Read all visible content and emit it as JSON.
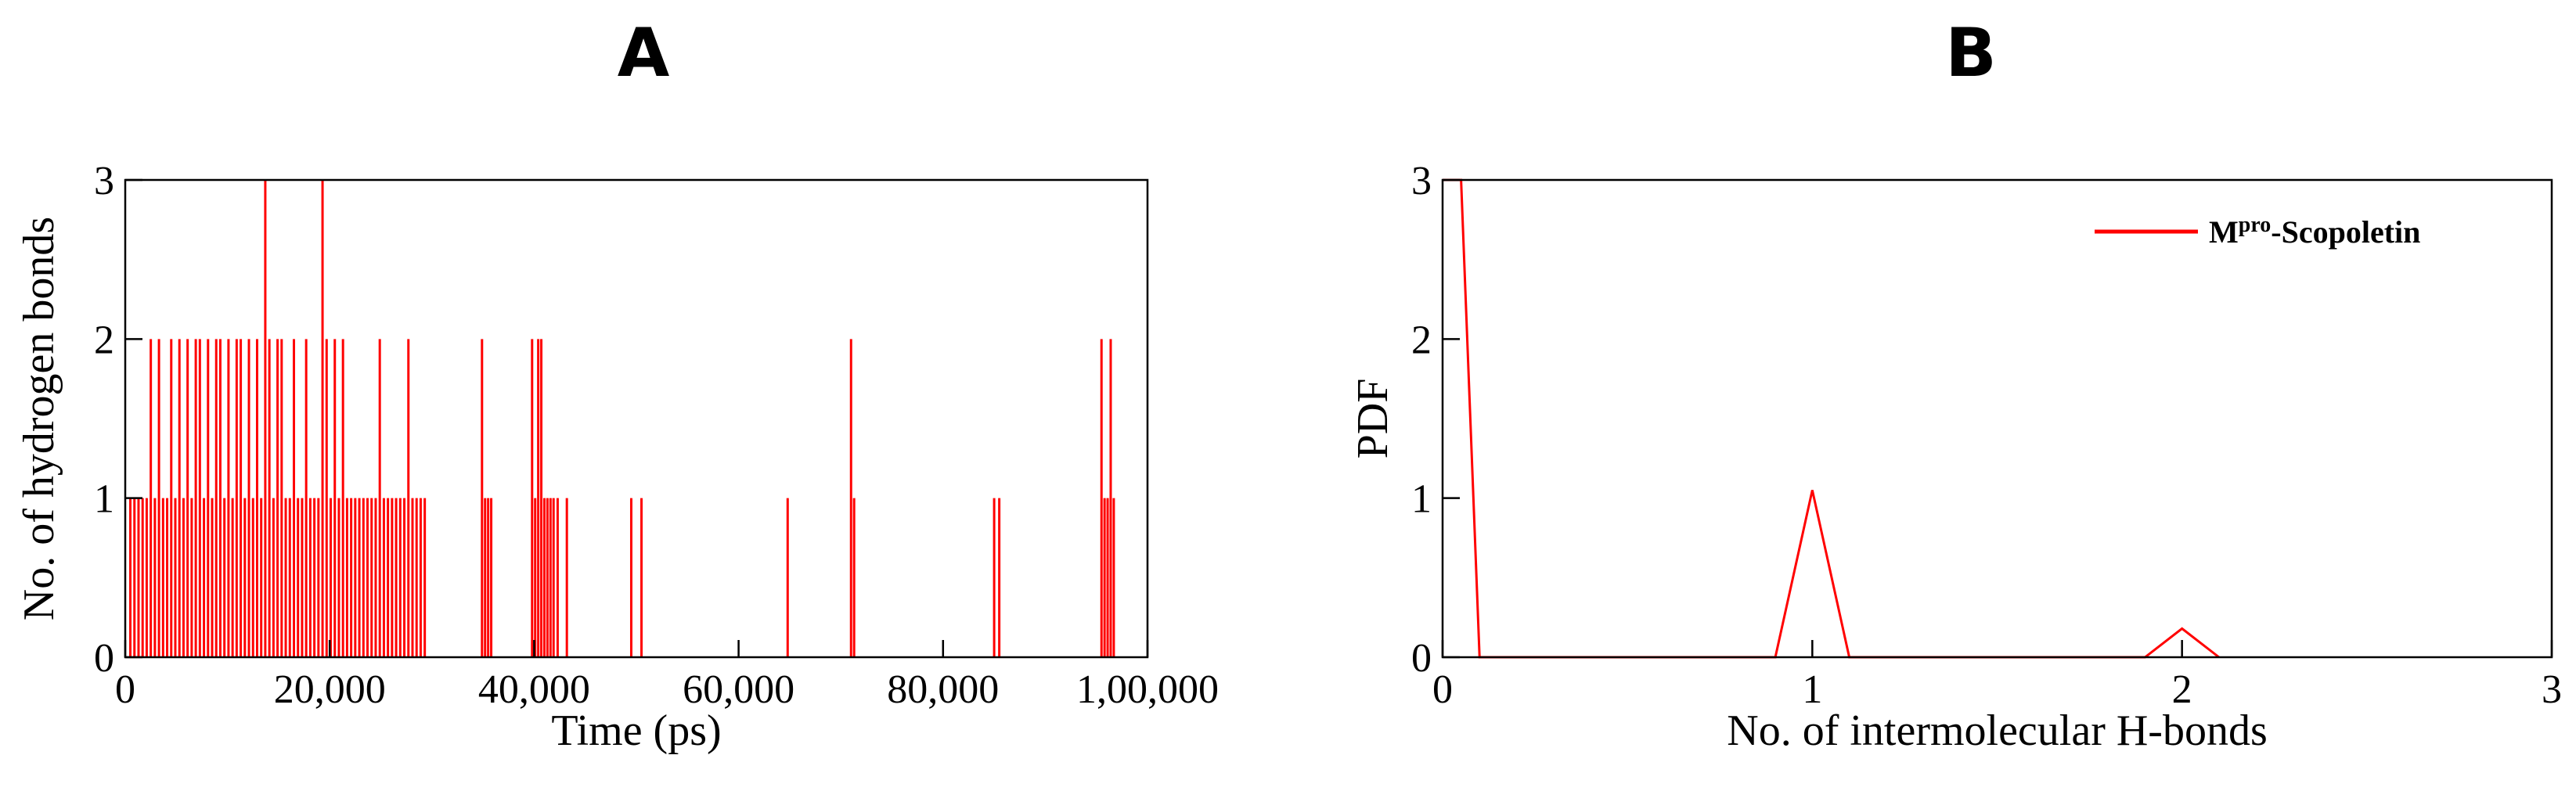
{
  "panels": {
    "a_label": "A",
    "b_label": "B"
  },
  "legend": {
    "main": "M",
    "sup": "pro",
    "rest": "-Scopoletin",
    "color": "#ff0000"
  },
  "chart_data": [
    {
      "type": "bar",
      "xlabel": "Time (ps)",
      "ylabel": "No. of hydrogen bonds",
      "xlim": [
        0,
        100000
      ],
      "ylim": [
        0,
        3
      ],
      "x_ticks": [
        0,
        20000,
        40000,
        60000,
        80000,
        100000
      ],
      "x_tick_labels": [
        "0",
        "20,000",
        "40,000",
        "60,000",
        "80,000",
        "1,00,000"
      ],
      "y_ticks": [
        0,
        1,
        2,
        3
      ],
      "y_tick_labels": [
        "0",
        "1",
        "2",
        "3"
      ],
      "color": "#ff0000",
      "series": [
        {
          "x": [
            500,
            900,
            1300,
            1700,
            2100,
            2500,
            2900,
            3300,
            3700,
            4100,
            4500,
            4900,
            5300,
            5700,
            6100,
            6500,
            6900,
            7300,
            7700,
            8100,
            8500,
            8900,
            9300,
            9700,
            10100,
            10500,
            10900,
            11300,
            11700,
            12100,
            12500,
            12900,
            13300,
            13700,
            14100,
            14500,
            14900,
            15300,
            15700,
            16100,
            16500,
            16900,
            17300,
            17700,
            18100,
            18500,
            18900,
            19300,
            19700,
            20100,
            20500,
            20900,
            21300,
            21700,
            22100,
            22500,
            22900,
            23300,
            23700,
            24100,
            24500,
            24900,
            25300,
            25700,
            26100,
            26500,
            26900,
            27300,
            27700,
            28100,
            28500,
            28900,
            29300,
            34900,
            35200,
            35500,
            35800,
            39800,
            40100,
            40400,
            40700,
            41000,
            41300,
            41600,
            41900,
            42300,
            43200,
            49500,
            50500,
            64800,
            71000,
            71300,
            85000,
            85500,
            95500,
            95800,
            96100,
            96400,
            96700
          ],
          "values": [
            1,
            1,
            1,
            1,
            1,
            2,
            1,
            2,
            1,
            1,
            2,
            1,
            2,
            1,
            2,
            1,
            2,
            2,
            1,
            2,
            1,
            2,
            2,
            1,
            2,
            1,
            2,
            2,
            1,
            2,
            1,
            2,
            1,
            3,
            2,
            1,
            2,
            2,
            1,
            1,
            2,
            1,
            1,
            2,
            1,
            1,
            1,
            3,
            2,
            1,
            2,
            1,
            2,
            1,
            1,
            1,
            1,
            1,
            1,
            1,
            1,
            2,
            1,
            1,
            1,
            1,
            1,
            1,
            2,
            1,
            1,
            1,
            1,
            2,
            1,
            1,
            1,
            2,
            1,
            2,
            2,
            1,
            1,
            1,
            1,
            1,
            1,
            1,
            1,
            1,
            2,
            1,
            1,
            1,
            2,
            1,
            1,
            2,
            1
          ]
        }
      ]
    },
    {
      "type": "line",
      "xlabel": "No. of intermolecular H-bonds",
      "ylabel": "PDF",
      "xlim": [
        0,
        3
      ],
      "ylim": [
        0,
        3
      ],
      "x_ticks": [
        0,
        1,
        2,
        3
      ],
      "x_tick_labels": [
        "0",
        "1",
        "2",
        "3"
      ],
      "y_ticks": [
        0,
        1,
        2,
        3
      ],
      "y_tick_labels": [
        "0",
        "1",
        "2",
        "3"
      ],
      "legend_position": "top-right",
      "series": [
        {
          "color": "#ff0000",
          "x": [
            0.0,
            0.05,
            0.1,
            0.9,
            1.0,
            1.1,
            1.9,
            2.0,
            2.1
          ],
          "values": [
            3.0,
            3.0,
            0.0,
            0.0,
            1.05,
            0.0,
            0.0,
            0.18,
            0.0
          ]
        }
      ]
    }
  ]
}
